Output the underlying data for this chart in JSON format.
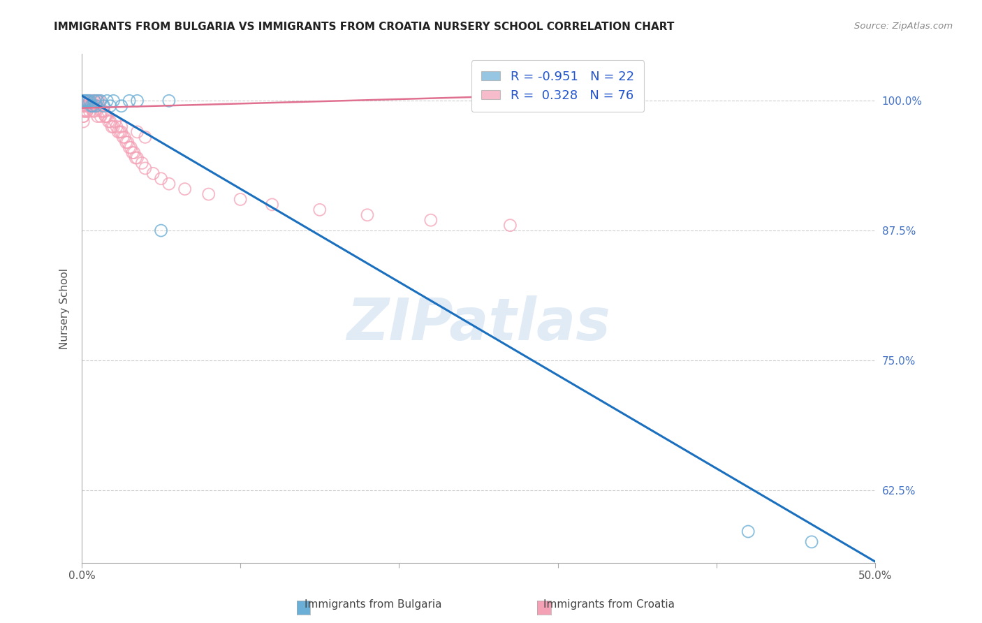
{
  "title": "IMMIGRANTS FROM BULGARIA VS IMMIGRANTS FROM CROATIA NURSERY SCHOOL CORRELATION CHART",
  "source": "Source: ZipAtlas.com",
  "ylabel": "Nursery School",
  "xlim": [
    0.0,
    0.5
  ],
  "ylim": [
    0.555,
    1.045
  ],
  "yticks": [
    0.625,
    0.75,
    0.875,
    1.0
  ],
  "ytick_labels": [
    "62.5%",
    "75.0%",
    "87.5%",
    "100.0%"
  ],
  "R_bulgaria": -0.951,
  "N_bulgaria": 22,
  "R_croatia": 0.328,
  "N_croatia": 76,
  "color_bulgaria": "#6baed6",
  "color_croatia": "#f4a0b5",
  "trend_color_bulgaria": "#1a6fbe",
  "trend_color_croatia": "#e07090",
  "watermark": "ZIPatlas",
  "bulgaria_scatter_x": [
    0.001,
    0.002,
    0.003,
    0.004,
    0.005,
    0.006,
    0.007,
    0.008,
    0.009,
    0.01,
    0.012,
    0.014,
    0.016,
    0.018,
    0.02,
    0.025,
    0.03,
    0.035,
    0.05,
    0.055,
    0.42,
    0.46
  ],
  "bulgaria_scatter_y": [
    1.0,
    1.0,
    1.0,
    1.0,
    1.0,
    0.995,
    0.995,
    1.0,
    0.995,
    1.0,
    1.0,
    0.995,
    1.0,
    0.995,
    1.0,
    0.995,
    1.0,
    1.0,
    0.875,
    1.0,
    0.585,
    0.575
  ],
  "croatia_scatter_x": [
    0.001,
    0.001,
    0.001,
    0.001,
    0.001,
    0.002,
    0.002,
    0.002,
    0.003,
    0.003,
    0.003,
    0.004,
    0.004,
    0.005,
    0.005,
    0.005,
    0.006,
    0.006,
    0.007,
    0.007,
    0.008,
    0.008,
    0.009,
    0.009,
    0.01,
    0.01,
    0.011,
    0.012,
    0.013,
    0.014,
    0.015,
    0.016,
    0.017,
    0.018,
    0.019,
    0.02,
    0.021,
    0.022,
    0.023,
    0.024,
    0.025,
    0.026,
    0.027,
    0.028,
    0.029,
    0.03,
    0.031,
    0.032,
    0.033,
    0.034,
    0.035,
    0.038,
    0.04,
    0.045,
    0.05,
    0.055,
    0.065,
    0.08,
    0.1,
    0.12,
    0.15,
    0.18,
    0.22,
    0.27,
    0.035,
    0.04,
    0.025,
    0.015,
    0.012,
    0.008,
    0.005,
    0.003,
    0.002,
    0.001,
    0.007,
    0.01
  ],
  "croatia_scatter_y": [
    1.0,
    0.995,
    0.99,
    0.985,
    0.98,
    1.0,
    0.995,
    0.99,
    1.0,
    0.995,
    0.99,
    1.0,
    0.995,
    1.0,
    0.995,
    0.99,
    1.0,
    0.995,
    1.0,
    0.995,
    1.0,
    0.995,
    1.0,
    0.995,
    1.0,
    0.995,
    1.0,
    0.99,
    0.99,
    0.99,
    0.985,
    0.985,
    0.98,
    0.98,
    0.975,
    0.975,
    0.98,
    0.975,
    0.97,
    0.97,
    0.97,
    0.965,
    0.965,
    0.96,
    0.96,
    0.955,
    0.955,
    0.95,
    0.95,
    0.945,
    0.945,
    0.94,
    0.935,
    0.93,
    0.925,
    0.92,
    0.915,
    0.91,
    0.905,
    0.9,
    0.895,
    0.89,
    0.885,
    0.88,
    0.97,
    0.965,
    0.975,
    0.985,
    0.985,
    0.99,
    0.995,
    0.99,
    0.99,
    0.985,
    0.99,
    0.985
  ],
  "bulgaria_trend_x": [
    0.0,
    0.5
  ],
  "bulgaria_trend_y": [
    1.005,
    0.556
  ],
  "croatia_trend_x": [
    0.0,
    0.28
  ],
  "croatia_trend_y": [
    0.993,
    1.005
  ]
}
